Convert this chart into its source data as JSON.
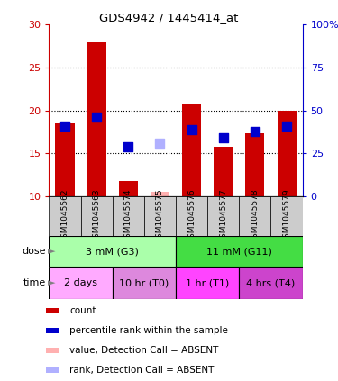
{
  "title": "GDS4942 / 1445414_at",
  "samples": [
    "GSM1045562",
    "GSM1045563",
    "GSM1045574",
    "GSM1045575",
    "GSM1045576",
    "GSM1045577",
    "GSM1045578",
    "GSM1045579"
  ],
  "bar_values": [
    18.5,
    28.0,
    11.8,
    10.5,
    20.8,
    15.8,
    17.3,
    20.0
  ],
  "bar_absent": [
    false,
    false,
    false,
    true,
    false,
    false,
    false,
    false
  ],
  "percentile_values": [
    18.2,
    19.2,
    15.8,
    16.2,
    17.8,
    16.8,
    17.5,
    18.2
  ],
  "percentile_absent": [
    false,
    false,
    false,
    true,
    false,
    false,
    false,
    false
  ],
  "bar_color": "#cc0000",
  "bar_absent_color": "#ffb0b0",
  "dot_color": "#0000cc",
  "dot_absent_color": "#b0b0ff",
  "ylim_left": [
    10,
    30
  ],
  "ylim_right": [
    0,
    100
  ],
  "yticks_left": [
    10,
    15,
    20,
    25,
    30
  ],
  "yticks_right": [
    0,
    25,
    50,
    75,
    100
  ],
  "ytick_labels_right": [
    "0",
    "25",
    "50",
    "75",
    "100%"
  ],
  "dose_groups": [
    {
      "label": "3 mM (G3)",
      "start": 0,
      "end": 4,
      "color": "#aaffaa",
      "border_color": "#33cc33"
    },
    {
      "label": "11 mM (G11)",
      "start": 4,
      "end": 8,
      "color": "#44dd44",
      "border_color": "#229922"
    }
  ],
  "time_groups": [
    {
      "label": "2 days",
      "start": 0,
      "end": 2,
      "color": "#ffaaff",
      "border_color": "#cc44cc"
    },
    {
      "label": "10 hr (T0)",
      "start": 2,
      "end": 4,
      "color": "#dd88dd",
      "border_color": "#cc44cc"
    },
    {
      "label": "1 hr (T1)",
      "start": 4,
      "end": 6,
      "color": "#ff44ff",
      "border_color": "#cc44cc"
    },
    {
      "label": "4 hrs (T4)",
      "start": 6,
      "end": 8,
      "color": "#cc44cc",
      "border_color": "#cc44cc"
    }
  ],
  "legend_items": [
    {
      "label": "count",
      "color": "#cc0000"
    },
    {
      "label": "percentile rank within the sample",
      "color": "#0000cc"
    },
    {
      "label": "value, Detection Call = ABSENT",
      "color": "#ffb0b0"
    },
    {
      "label": "rank, Detection Call = ABSENT",
      "color": "#b0b0ff"
    }
  ],
  "left_axis_color": "#cc0000",
  "right_axis_color": "#0000cc",
  "sample_bg_color": "#cccccc",
  "plot_bg_color": "#ffffff"
}
